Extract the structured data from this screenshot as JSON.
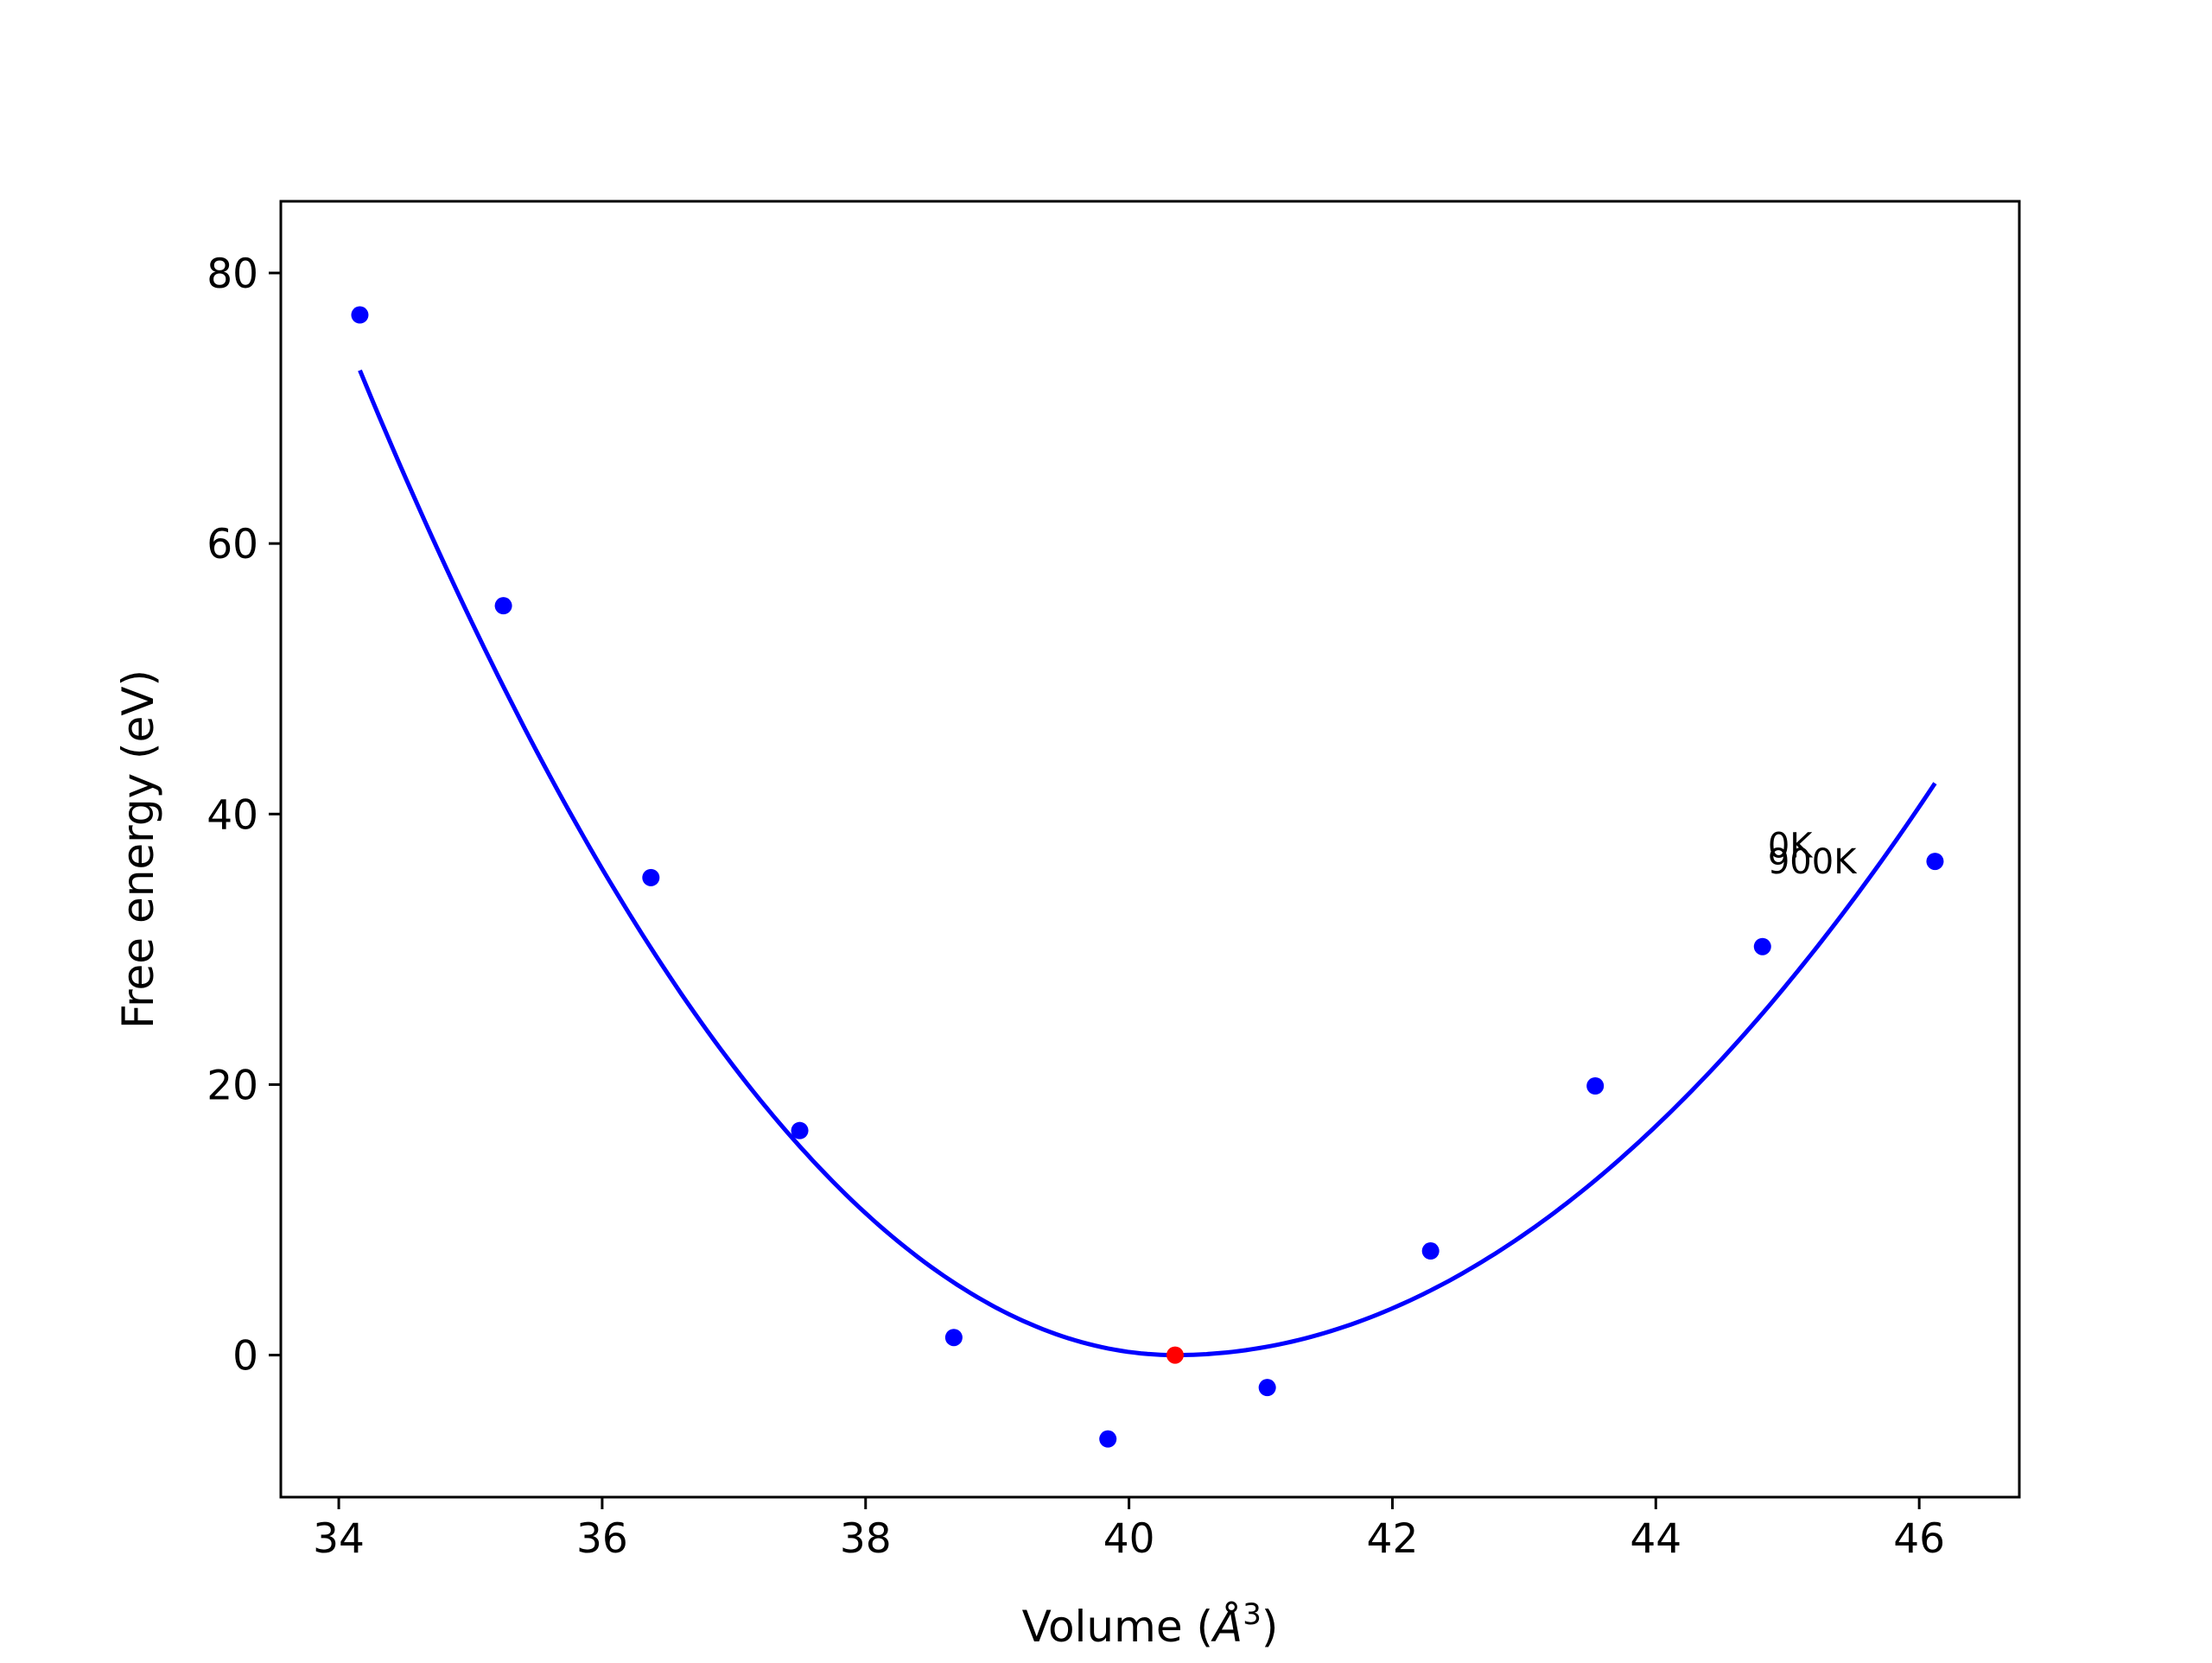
{
  "chart_data": {
    "type": "scatter",
    "title": "",
    "xlabel": "Volume (Å³)",
    "xlabel_parts": {
      "prefix": "Volume (",
      "symbol": "Å",
      "superscript": "3",
      "suffix": ")"
    },
    "ylabel": "Free energy (eV)",
    "xlim": [
      33.56,
      46.76
    ],
    "ylim": [
      -10.5,
      85.3
    ],
    "x_ticks": [
      34,
      36,
      38,
      40,
      42,
      44,
      46
    ],
    "y_ticks": [
      0,
      20,
      40,
      60,
      80
    ],
    "x_tick_labels": [
      "34",
      "36",
      "38",
      "40",
      "42",
      "44",
      "46"
    ],
    "y_tick_labels": [
      "0",
      "20",
      "40",
      "60",
      "80"
    ],
    "grid": false,
    "legend": "none",
    "series": [
      {
        "kind": "scatter",
        "color": "#0000ff",
        "x": [
          34.16,
          35.25,
          36.37,
          37.5,
          38.67,
          39.84,
          41.05,
          42.29,
          43.54,
          44.81,
          46.12
        ],
        "y": [
          76.9,
          55.4,
          35.3,
          16.6,
          1.3,
          -6.2,
          -2.4,
          7.7,
          19.9,
          30.2,
          36.5
        ]
      },
      {
        "kind": "line",
        "color": "#0000ff",
        "model": "quadratic",
        "x0": 40.35,
        "coef_left": 1.9,
        "coef_right": 1.27,
        "x_range": [
          34.16,
          46.12
        ]
      },
      {
        "kind": "scatter",
        "color": "#ff0000",
        "x": [
          40.35
        ],
        "y": [
          0.0
        ]
      }
    ],
    "annotations": [
      {
        "text": "0K",
        "x": 44.85,
        "y": 37.7
      },
      {
        "text": "900K",
        "x": 44.85,
        "y": 36.5
      }
    ]
  }
}
